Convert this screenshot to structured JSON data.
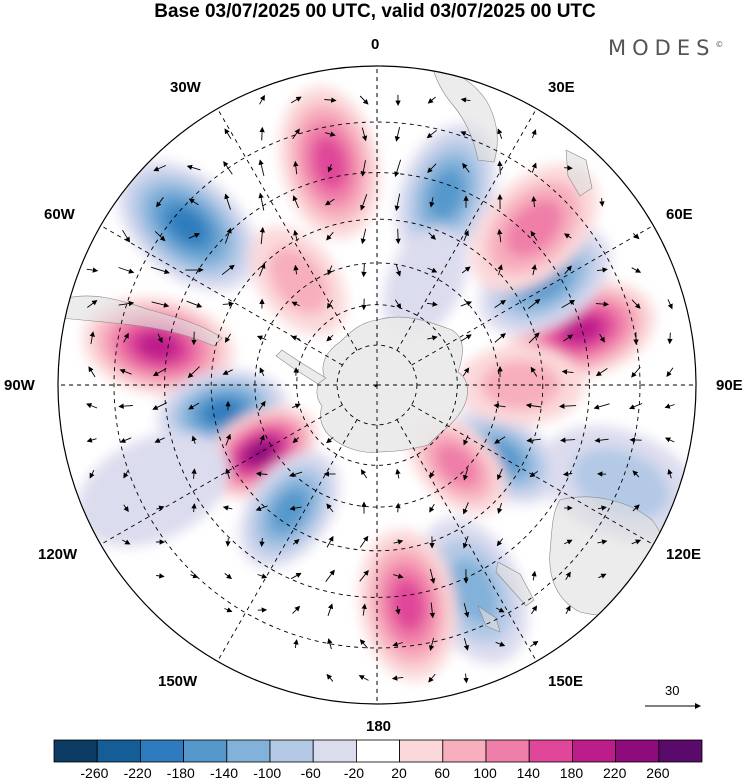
{
  "header": {
    "title": "Base 03/07/2025 00 UTC, valid 03/07/2025 00 UTC",
    "brand": "MODES",
    "brand_mark": "©"
  },
  "map": {
    "projection": "south-polar-stereographic",
    "longitude_labels": [
      "0",
      "30E",
      "60E",
      "90E",
      "120E",
      "150E",
      "180",
      "150W",
      "120W",
      "90W",
      "60W",
      "30W"
    ],
    "anomaly_centers": [
      {
        "lon": 75,
        "lat": -40,
        "value": 200
      },
      {
        "lon": 58,
        "lat": -43,
        "value": -180
      },
      {
        "lon": 112,
        "lat": -30,
        "value": -80
      },
      {
        "lon": 155,
        "lat": -37,
        "value": -140
      },
      {
        "lon": 172,
        "lat": -38,
        "value": 180
      },
      {
        "lon": 120,
        "lat": -55,
        "value": -160
      },
      {
        "lon": 135,
        "lat": -62,
        "value": 140
      },
      {
        "lon": 90,
        "lat": -55,
        "value": 100
      },
      {
        "lon": 20,
        "lat": -42,
        "value": -160
      },
      {
        "lon": 45,
        "lat": -38,
        "value": 140
      },
      {
        "lon": -12,
        "lat": -37,
        "value": 160
      },
      {
        "lon": -50,
        "lat": -33,
        "value": -200
      },
      {
        "lon": -37,
        "lat": -58,
        "value": 80
      },
      {
        "lon": 25,
        "lat": -62,
        "value": -40
      },
      {
        "lon": -80,
        "lat": -38,
        "value": 200
      },
      {
        "lon": -100,
        "lat": -52,
        "value": -200
      },
      {
        "lon": -120,
        "lat": -57,
        "value": 240
      },
      {
        "lon": -145,
        "lat": -53,
        "value": -160
      },
      {
        "lon": -115,
        "lat": -33,
        "value": -60
      }
    ]
  },
  "vector_scale": {
    "value": "30"
  },
  "colorbar": {
    "colors": [
      "#0c3b63",
      "#155d96",
      "#2e7bbd",
      "#5598cc",
      "#82b1d9",
      "#b3c9e6",
      "#dcdcef",
      "#ffffff",
      "#fbd9da",
      "#f7aebd",
      "#ef7ea8",
      "#e0479a",
      "#bd1c8b",
      "#8e0b7c",
      "#5a0a6b"
    ],
    "ticks": [
      "-260",
      "-220",
      "-180",
      "-140",
      "-100",
      "-60",
      "-20",
      "20",
      "60",
      "100",
      "140",
      "180",
      "220",
      "260"
    ]
  }
}
